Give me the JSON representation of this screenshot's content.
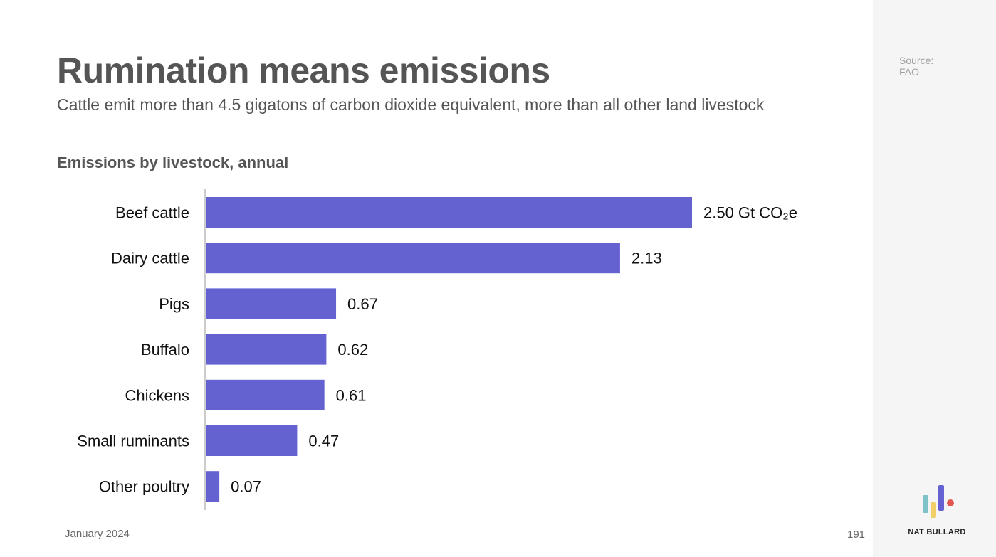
{
  "slide": {
    "title": "Rumination means emissions",
    "subtitle": "Cattle emit more than 4.5 gigatons of carbon dioxide equivalent, more than all other land livestock",
    "date": "January 2024",
    "page_number": "191"
  },
  "sidebar": {
    "source_label": "Source:",
    "source_value": "FAO",
    "brand": "NAT BULLARD"
  },
  "colors": {
    "bar": "#6461d1",
    "axis": "#cccccc"
  },
  "chart_data": {
    "type": "bar",
    "orientation": "horizontal",
    "title": "Emissions by livestock, annual",
    "categories": [
      "Beef cattle",
      "Dairy cattle",
      "Pigs",
      "Buffalo",
      "Chickens",
      "Small ruminants",
      "Other poultry"
    ],
    "values": [
      2.5,
      2.13,
      0.67,
      0.62,
      0.61,
      0.47,
      0.07
    ],
    "data_labels": [
      "2.50 Gt CO₂e",
      "2.13",
      "0.67",
      "0.62",
      "0.61",
      "0.47",
      "0.07"
    ],
    "unit": "Gt CO₂e",
    "xlim": [
      0,
      2.5
    ],
    "grid": false
  }
}
